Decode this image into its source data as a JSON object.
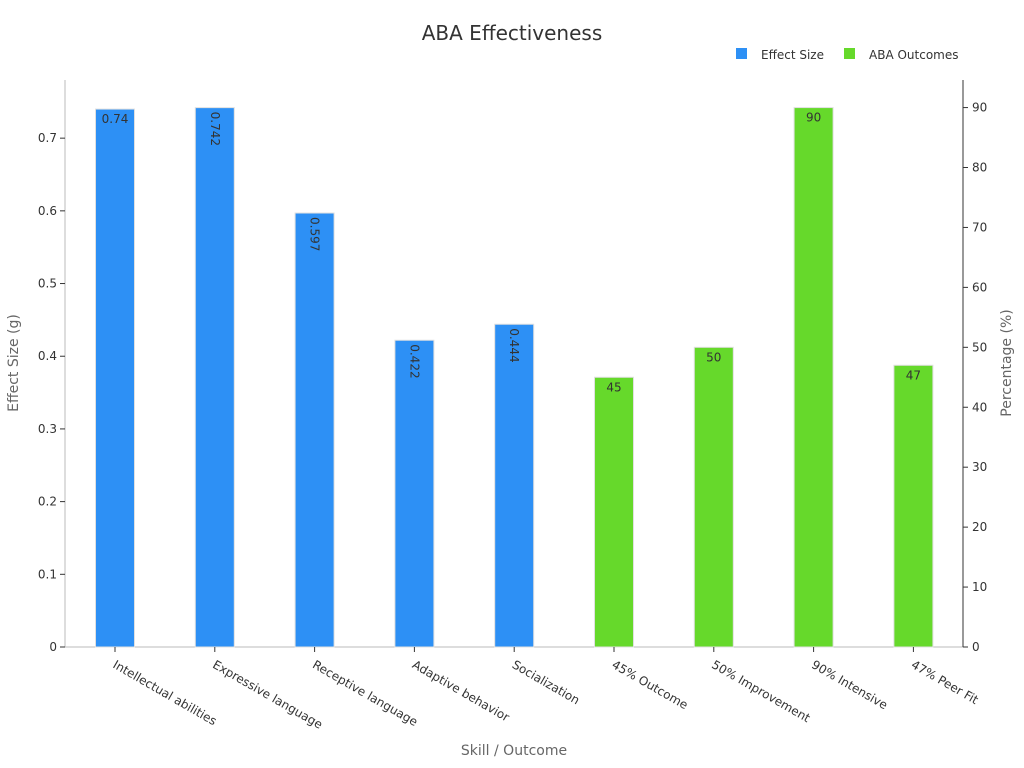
{
  "chart_data": {
    "type": "bar",
    "title": "ABA Effectiveness",
    "xlabel": "Skill / Outcome",
    "categories": [
      "Intellectual abilities",
      "Expressive language",
      "Receptive language",
      "Adaptive behavior",
      "Socialization",
      "45% Outcome",
      "50% Improvement",
      "90% Intensive",
      "47% Peer Fit"
    ],
    "series": [
      {
        "name": "Effect Size",
        "axis": "left",
        "color": "#2d90f5",
        "values": [
          0.74,
          0.742,
          0.597,
          0.422,
          0.444,
          null,
          null,
          null,
          null
        ],
        "labels": [
          "0.74",
          "0.742",
          "0.597",
          "0.422",
          "0.444",
          null,
          null,
          null,
          null
        ],
        "label_rotated": [
          false,
          true,
          true,
          true,
          true,
          false,
          false,
          false,
          false
        ]
      },
      {
        "name": "ABA Outcomes",
        "axis": "right",
        "color": "#66d92b",
        "values": [
          null,
          null,
          null,
          null,
          null,
          45,
          50,
          90,
          47
        ],
        "labels": [
          null,
          null,
          null,
          null,
          null,
          "45",
          "50",
          "90",
          "47"
        ],
        "label_rotated": [
          false,
          false,
          false,
          false,
          false,
          false,
          false,
          false,
          false
        ]
      }
    ],
    "y_left": {
      "label": "Effect Size (g)",
      "range": [
        0,
        0.78
      ],
      "ticks": [
        0,
        0.1,
        0.2,
        0.3,
        0.4,
        0.5,
        0.6,
        0.7
      ],
      "tick_labels": [
        "0",
        "0.1",
        "0.2",
        "0.3",
        "0.4",
        "0.5",
        "0.6",
        "0.7"
      ]
    },
    "y_right": {
      "label": "Percentage (%)",
      "range": [
        0,
        94.6
      ],
      "ticks": [
        0,
        10,
        20,
        30,
        40,
        50,
        60,
        70,
        80,
        90
      ],
      "tick_labels": [
        "0",
        "10",
        "20",
        "30",
        "40",
        "50",
        "60",
        "70",
        "80",
        "90"
      ]
    },
    "grid": false,
    "legend_position": "top-right"
  }
}
